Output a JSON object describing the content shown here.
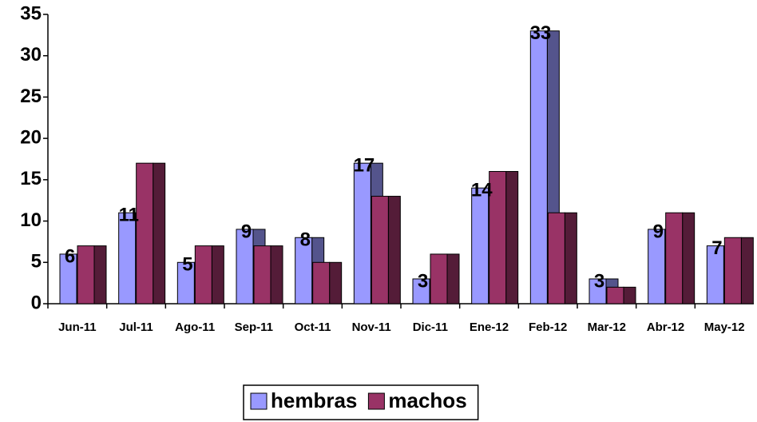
{
  "chart_data": {
    "type": "bar",
    "categories": [
      "Jun-11",
      "Jul-11",
      "Ago-11",
      "Sep-11",
      "Oct-11",
      "Nov-11",
      "Dic-11",
      "Ene-12",
      "Feb-12",
      "Mar-12",
      "Abr-12",
      "May-12"
    ],
    "series": [
      {
        "name": "hembras",
        "color": "#9999ff",
        "values": [
          6,
          11,
          5,
          9,
          8,
          17,
          3,
          14,
          33,
          3,
          9,
          7
        ]
      },
      {
        "name": "machos",
        "color": "#993366",
        "values": [
          7,
          17,
          7,
          7,
          5,
          13,
          6,
          16,
          11,
          2,
          11,
          8
        ]
      }
    ],
    "ylim": [
      0,
      35
    ],
    "yticks": [
      0,
      5,
      10,
      15,
      20,
      25,
      30,
      35
    ],
    "legend": "bottom"
  }
}
